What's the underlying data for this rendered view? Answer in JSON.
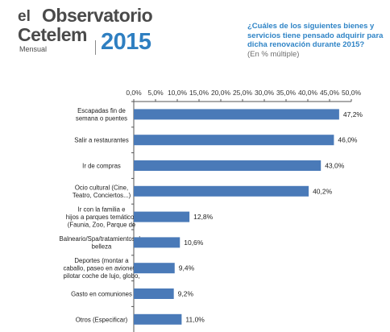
{
  "brand": {
    "el": "el",
    "observatorio": "Observatorio",
    "cetelem": "Cetelem",
    "mensual": "Mensual",
    "year": "2015"
  },
  "question": {
    "text": "¿Cuáles de los siguientes bienes y servicios tiene pensado adquirir para dicha renovación durante 2015?",
    "sub": "(En % múltiple)"
  },
  "colors": {
    "bar": "#4a7ab8",
    "accent": "#2f84c6"
  },
  "chart_data": {
    "type": "bar",
    "orientation": "horizontal",
    "categories": [
      [
        "Escapadas fin de",
        "semana o puentes"
      ],
      [
        "Salir a restaurantes"
      ],
      [
        "Ir de compras"
      ],
      [
        "Ocio cultural (Cine,",
        "Teatro, Conciertos...)"
      ],
      [
        "Ir con la familia e",
        "hijos a parques temáticos",
        "(Faunia, Zoo, Parque de"
      ],
      [
        "Balneario/Spa/tratamientos de",
        "belleza"
      ],
      [
        "Deportes (montar a",
        "caballo, paseo en avioneta,",
        "pilotar coche de lujo, globo,"
      ],
      [
        "Gasto en comuniones"
      ],
      [
        "Otros (Especificar)"
      ]
    ],
    "values": [
      47.2,
      46.0,
      43.0,
      40.2,
      12.8,
      10.6,
      9.4,
      9.2,
      11.0
    ],
    "value_labels": [
      "47,2%",
      "46,0%",
      "43,0%",
      "40,2%",
      "12,8%",
      "10,6%",
      "9,4%",
      "9,2%",
      "11,0%"
    ],
    "ticks": [
      "0,0%",
      "5,0%",
      "10,0%",
      "15,0%",
      "20,0%",
      "25,0%",
      "30,0%",
      "35,0%",
      "40,0%",
      "45,0%",
      "50,0%"
    ],
    "xlim": [
      0,
      50
    ],
    "grid": false
  }
}
